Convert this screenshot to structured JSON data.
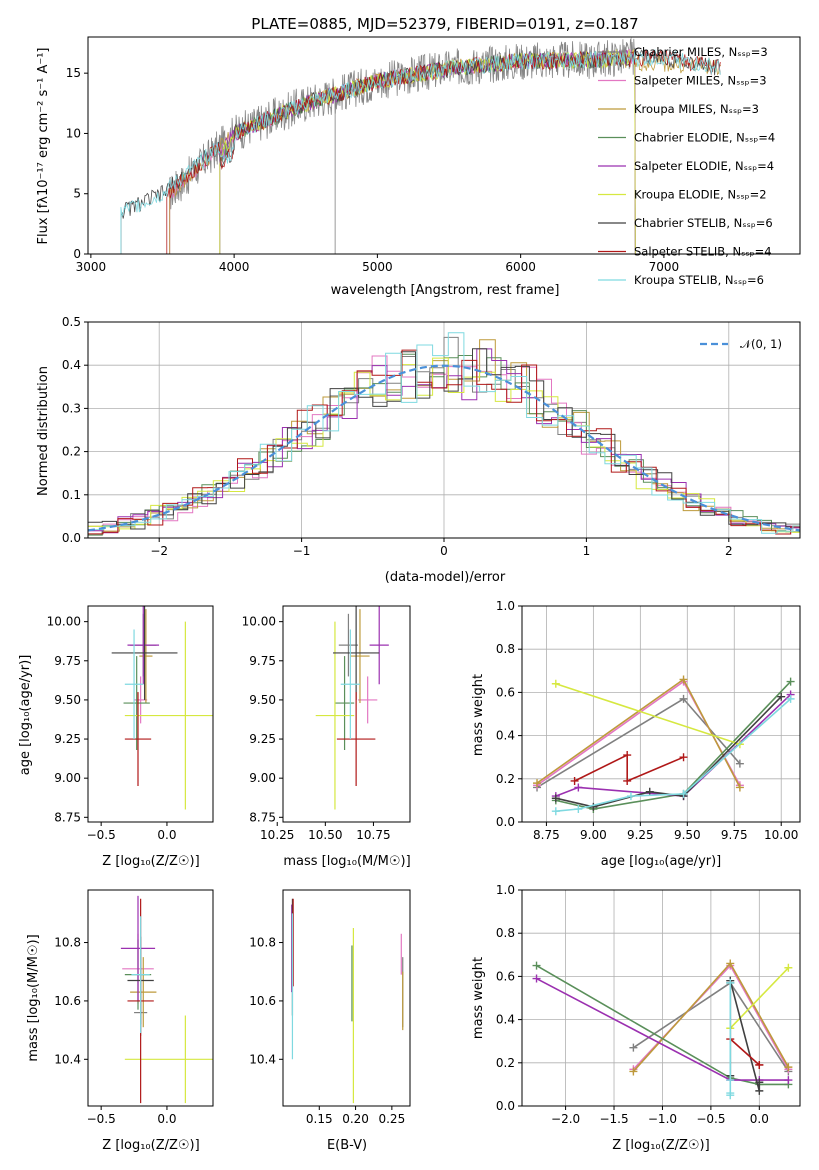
{
  "title": "PLATE=0885, MJD=52379, FIBERID=0191, z=0.187",
  "colors": [
    "#808080",
    "#e377c2",
    "#bd9a3b",
    "#5a8f5a",
    "#9b30b0",
    "#d6e840",
    "#404040",
    "#b01818",
    "#7fd9e0"
  ],
  "chart_data": [
    {
      "id": "spectrum",
      "type": "line",
      "xlabel": "wavelength [Angstrom, rest frame]",
      "ylabel": "Flux [fλ10⁻¹⁷ erg cm⁻² s⁻¹ A⁻¹]",
      "xlim": [
        2980,
        7950
      ],
      "ylim": [
        0,
        18
      ],
      "xticks": [
        3000,
        4000,
        5000,
        6000,
        7000
      ],
      "yticks": [
        0,
        5,
        10,
        15
      ],
      "grid": false,
      "legend_position": "top-right",
      "series": [
        {
          "name": "Chabrier MILES, N_SSP=3",
          "x": [
            3550,
            4000,
            4500,
            5000,
            5500,
            6000,
            6500,
            6800
          ],
          "y": [
            5,
            10,
            12.5,
            14.3,
            15.4,
            16,
            16.1,
            16.4
          ]
        },
        {
          "name": "Salpeter MILES, N_SSP=3",
          "x": [
            3550,
            4000,
            4500,
            5000,
            5500,
            6000,
            6500,
            6800
          ],
          "y": [
            5,
            10,
            12.5,
            14.3,
            15.4,
            16,
            16.1,
            16.4
          ]
        },
        {
          "name": "Kroupa MILES, N_SSP=3",
          "x": [
            3550,
            4000,
            4500,
            5000,
            5500,
            6000,
            6500,
            7400
          ],
          "y": [
            5,
            10,
            12.5,
            14.3,
            15.4,
            16,
            16.1,
            15.5
          ]
        },
        {
          "name": "Chabrier ELODIE, N_SSP=4",
          "x": [
            3900,
            4000,
            4500,
            5000,
            5500,
            6000,
            6500,
            6800
          ],
          "y": [
            8,
            10,
            12.5,
            14.3,
            15.4,
            16,
            16.1,
            16.4
          ]
        },
        {
          "name": "Salpeter ELODIE, N_SSP=4",
          "x": [
            3900,
            4000,
            4500,
            5000,
            5500,
            6000,
            6500,
            6800
          ],
          "y": [
            8,
            10,
            12.5,
            14.3,
            15.4,
            16,
            16.1,
            16.4
          ]
        },
        {
          "name": "Kroupa ELODIE, N_SSP=2",
          "x": [
            3900,
            4000,
            4500,
            5000,
            5500,
            6000,
            6500,
            6800
          ],
          "y": [
            8,
            10,
            12.5,
            14.3,
            15.4,
            16,
            16.1,
            16.4
          ]
        },
        {
          "name": "Chabrier STELIB, N_SSP=6",
          "x": [
            3210,
            3500,
            4000,
            4500,
            5000,
            5500,
            6000,
            6500,
            7000,
            7400
          ],
          "y": [
            3.5,
            5,
            10,
            12.5,
            14.3,
            15.4,
            16,
            16.1,
            16.3,
            15.4
          ]
        },
        {
          "name": "Salpeter STELIB, N_SSP=4",
          "x": [
            3530,
            4000,
            4500,
            5000,
            5500,
            6000,
            6500,
            7000,
            7400
          ],
          "y": [
            5,
            10,
            12.5,
            14.3,
            15.4,
            16,
            16.1,
            16.3,
            15.4
          ]
        },
        {
          "name": "Kroupa STELIB, N_SSP=6",
          "x": [
            3210,
            3500,
            4000,
            4500,
            5000,
            5500,
            6000,
            6500,
            7000,
            7400
          ],
          "y": [
            3.5,
            5,
            10,
            12.5,
            14.3,
            15.4,
            16,
            16.1,
            16.3,
            15.4
          ]
        }
      ]
    },
    {
      "id": "residuals",
      "type": "line",
      "xlabel": "(data-model)/error",
      "ylabel": "Normed distribution",
      "xlim": [
        -2.5,
        2.5
      ],
      "ylim": [
        0,
        0.5
      ],
      "xticks": [
        -2,
        -1,
        0,
        1,
        2
      ],
      "yticks": [
        0,
        0.1,
        0.2,
        0.3,
        0.4,
        0.5
      ],
      "grid": true,
      "legend_position": "top-right",
      "legend_label": "𝒩(0, 1)"
    },
    {
      "id": "age-vs-Z",
      "type": "errorbar",
      "xlabel": "Z [log₁₀(Z/Z☉)]",
      "ylabel": "age  [log₁₀(age/yr)]",
      "xlim": [
        -0.6,
        0.35
      ],
      "ylim": [
        8.72,
        10.1
      ],
      "xticks": [
        -0.5,
        0.0
      ],
      "yticks": [
        8.75,
        9.0,
        9.25,
        9.5,
        9.75,
        10.0
      ],
      "points": [
        {
          "x": -0.18,
          "y": 9.85,
          "xerr": 0.1,
          "yerr": 0.2
        },
        {
          "x": -0.2,
          "y": 9.5,
          "xerr": 0.05,
          "yerr": 0.15
        },
        {
          "x": -0.16,
          "y": 9.78,
          "xerr": 0.05,
          "yerr": 0.3
        },
        {
          "x": -0.23,
          "y": 9.48,
          "xerr": 0.1,
          "yerr": 0.3
        },
        {
          "x": -0.18,
          "y": 9.85,
          "xerr": 0.12,
          "yerr": 0.25
        },
        {
          "x": 0.14,
          "y": 9.4,
          "xerr": 0.46,
          "yerr": 0.6
        },
        {
          "x": -0.17,
          "y": 9.8,
          "xerr": 0.25,
          "yerr": 0.3
        },
        {
          "x": -0.22,
          "y": 9.25,
          "xerr": 0.1,
          "yerr": 0.3
        },
        {
          "x": -0.25,
          "y": 9.6,
          "xerr": 0.07,
          "yerr": 0.35
        }
      ]
    },
    {
      "id": "age-vs-mass",
      "type": "errorbar",
      "xlabel": "mass [log₁₀(M/M☉)]",
      "xlim": [
        10.28,
        10.94
      ],
      "ylim": [
        8.72,
        10.1
      ],
      "xticks": [
        10.25,
        10.5,
        10.75
      ],
      "yticks": [
        8.75,
        9.0,
        9.25,
        9.5,
        9.75,
        10.0
      ],
      "points": [
        {
          "x": 10.62,
          "y": 9.85,
          "xerr": 0.05,
          "yerr": 0.2
        },
        {
          "x": 10.72,
          "y": 9.5,
          "xerr": 0.05,
          "yerr": 0.15
        },
        {
          "x": 10.68,
          "y": 9.78,
          "xerr": 0.05,
          "yerr": 0.3
        },
        {
          "x": 10.6,
          "y": 9.48,
          "xerr": 0.05,
          "yerr": 0.3
        },
        {
          "x": 10.78,
          "y": 9.85,
          "xerr": 0.05,
          "yerr": 0.25
        },
        {
          "x": 10.55,
          "y": 9.4,
          "xerr": 0.1,
          "yerr": 0.6
        },
        {
          "x": 10.66,
          "y": 9.8,
          "xerr": 0.12,
          "yerr": 0.3
        },
        {
          "x": 10.66,
          "y": 9.25,
          "xerr": 0.1,
          "yerr": 0.3
        },
        {
          "x": 10.63,
          "y": 9.6,
          "xerr": 0.05,
          "yerr": 0.35
        }
      ]
    },
    {
      "id": "mw-vs-age",
      "type": "line",
      "xlabel": "age  [log₁₀(age/yr)]",
      "ylabel": "mass weight",
      "xlim": [
        8.62,
        10.1
      ],
      "ylim": [
        0,
        1
      ],
      "xticks": [
        8.75,
        9.0,
        9.25,
        9.5,
        9.75,
        10.0
      ],
      "yticks": [
        0,
        0.2,
        0.4,
        0.6,
        0.8,
        1.0
      ],
      "grid": true,
      "series": [
        {
          "x": [
            8.7,
            9.48,
            9.78
          ],
          "y": [
            0.16,
            0.57,
            0.27
          ]
        },
        {
          "x": [
            8.7,
            9.48,
            9.78
          ],
          "y": [
            0.17,
            0.65,
            0.17
          ]
        },
        {
          "x": [
            8.7,
            9.48,
            9.78
          ],
          "y": [
            0.18,
            0.66,
            0.16
          ]
        },
        {
          "x": [
            8.8,
            9.0,
            9.48,
            10.05
          ],
          "y": [
            0.1,
            0.06,
            0.13,
            0.65
          ]
        },
        {
          "x": [
            8.8,
            8.92,
            9.48,
            10.05
          ],
          "y": [
            0.12,
            0.16,
            0.12,
            0.59
          ]
        },
        {
          "x": [
            8.8,
            9.78
          ],
          "y": [
            0.64,
            0.36
          ]
        },
        {
          "x": [
            8.8,
            9.0,
            9.3,
            9.48,
            10.0
          ],
          "y": [
            0.11,
            0.07,
            0.14,
            0.12,
            0.58
          ]
        },
        {
          "x": [
            8.9,
            9.18,
            9.18,
            9.48
          ],
          "y": [
            0.19,
            0.31,
            0.19,
            0.3
          ]
        },
        {
          "x": [
            8.8,
            8.92,
            9.2,
            9.48,
            10.05
          ],
          "y": [
            0.05,
            0.06,
            0.12,
            0.13,
            0.57
          ]
        }
      ]
    },
    {
      "id": "mass-vs-Z",
      "type": "errorbar",
      "xlabel": "Z [log₁₀(Z/Z☉)]",
      "ylabel": "mass [log₁₀(M/M☉)]",
      "xlim": [
        -0.6,
        0.35
      ],
      "ylim": [
        10.24,
        10.98
      ],
      "xticks": [
        -0.5,
        0.0
      ],
      "yticks": [
        10.4,
        10.6,
        10.8
      ],
      "points": [
        {
          "x": -0.2,
          "y": 10.56,
          "xerr": 0.05,
          "yerr": 0.08
        },
        {
          "x": -0.22,
          "y": 10.71,
          "xerr": 0.12,
          "yerr": 0.12
        },
        {
          "x": -0.18,
          "y": 10.63,
          "xerr": 0.1,
          "yerr": 0.12
        },
        {
          "x": -0.22,
          "y": 10.69,
          "xerr": 0.1,
          "yerr": 0.12
        },
        {
          "x": -0.22,
          "y": 10.78,
          "xerr": 0.13,
          "yerr": 0.18
        },
        {
          "x": 0.14,
          "y": 10.4,
          "xerr": 0.46,
          "yerr": 0.15
        },
        {
          "x": -0.2,
          "y": 10.67,
          "xerr": 0.1,
          "yerr": 0.15
        },
        {
          "x": -0.2,
          "y": 10.6,
          "xerr": 0.1,
          "yerr": 0.35
        },
        {
          "x": -0.2,
          "y": 10.69,
          "xerr": 0.07,
          "yerr": 0.2
        }
      ]
    },
    {
      "id": "mass-vs-EBV",
      "type": "errorbar",
      "xlabel": "E(B-V)",
      "xlim": [
        0.1,
        0.275
      ],
      "ylim": [
        10.24,
        10.98
      ],
      "xticks": [
        0.15,
        0.2,
        0.25
      ],
      "yticks": [
        10.4,
        10.6,
        10.8
      ],
      "points": [
        {
          "x": 0.265,
          "y": 10.63,
          "xerr": 0,
          "yerr": 0.12
        },
        {
          "x": 0.263,
          "y": 10.76,
          "xerr": 0,
          "yerr": 0.07
        },
        {
          "x": 0.265,
          "y": 10.6,
          "xerr": 0,
          "yerr": 0.1
        },
        {
          "x": 0.195,
          "y": 10.66,
          "xerr": 0,
          "yerr": 0.13
        },
        {
          "x": 0.112,
          "y": 10.78,
          "xerr": 0,
          "yerr": 0.15
        },
        {
          "x": 0.197,
          "y": 10.55,
          "xerr": 0,
          "yerr": 0.3
        },
        {
          "x": 0.113,
          "y": 10.75,
          "xerr": 0,
          "yerr": 0.2
        },
        {
          "x": 0.114,
          "y": 10.8,
          "xerr": 0,
          "yerr": 0.15
        },
        {
          "x": 0.113,
          "y": 10.65,
          "xerr": 0,
          "yerr": 0.25
        }
      ]
    },
    {
      "id": "mw-vs-Z",
      "type": "line",
      "xlabel": "Z [log₁₀(Z/Z☉)]",
      "ylabel": "mass weight",
      "xlim": [
        -2.45,
        0.42
      ],
      "ylim": [
        0,
        1
      ],
      "xticks": [
        -2.0,
        -1.5,
        -1.0,
        -0.5,
        0.0
      ],
      "yticks": [
        0,
        0.2,
        0.4,
        0.6,
        0.8,
        1.0
      ],
      "grid": true,
      "series": [
        {
          "x": [
            -1.3,
            -0.3,
            0.3
          ],
          "y": [
            0.27,
            0.57,
            0.16
          ]
        },
        {
          "x": [
            -1.3,
            -0.3,
            0.3
          ],
          "y": [
            0.17,
            0.65,
            0.17
          ]
        },
        {
          "x": [
            -1.3,
            -0.3,
            0.3
          ],
          "y": [
            0.16,
            0.66,
            0.18
          ]
        },
        {
          "x": [
            -2.3,
            -0.3,
            0.0,
            0.3
          ],
          "y": [
            0.65,
            0.13,
            0.1,
            0.1
          ]
        },
        {
          "x": [
            -2.3,
            -0.3,
            0.0,
            0.3
          ],
          "y": [
            0.59,
            0.12,
            0.12,
            0.12
          ]
        },
        {
          "x": [
            -0.3,
            0.3
          ],
          "y": [
            0.36,
            0.64
          ]
        },
        {
          "x": [
            -0.3,
            -0.3,
            0.0,
            0.0
          ],
          "y": [
            0.14,
            0.58,
            0.07,
            0.11
          ]
        },
        {
          "x": [
            -0.3,
            0.0,
            0.0
          ],
          "y": [
            0.31,
            0.19,
            0.19
          ]
        },
        {
          "x": [
            -0.3,
            -0.3,
            -0.3,
            -0.3
          ],
          "y": [
            0.05,
            0.57,
            0.12,
            0.06
          ]
        }
      ]
    }
  ]
}
